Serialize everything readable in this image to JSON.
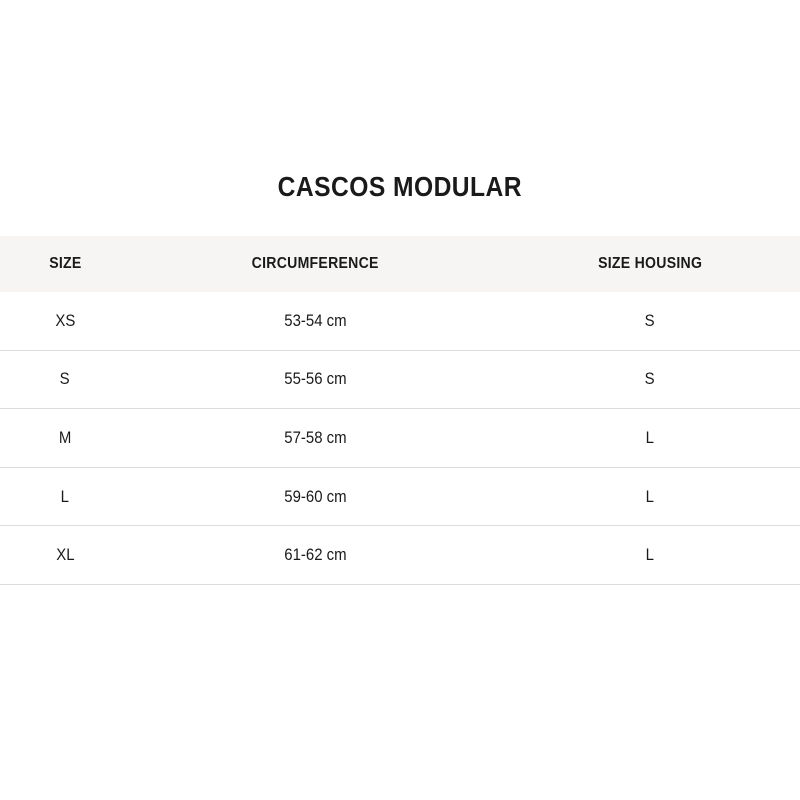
{
  "chart_data": {
    "type": "table",
    "title": "CASCOS MODULAR",
    "columns": [
      "SIZE",
      "CIRCUMFERENCE",
      "SIZE HOUSING"
    ],
    "rows": [
      [
        "XS",
        "53-54 cm",
        "S"
      ],
      [
        "S",
        "55-56 cm",
        "S"
      ],
      [
        "M",
        "57-58 cm",
        "L"
      ],
      [
        "L",
        "59-60 cm",
        "L"
      ],
      [
        "XL",
        "61-62 cm",
        "L"
      ]
    ]
  },
  "colors": {
    "page_background": "#ffffff",
    "header_background": "#f6f5f4",
    "row_border": "#dcdcdc",
    "text": "#1a1a1a"
  }
}
